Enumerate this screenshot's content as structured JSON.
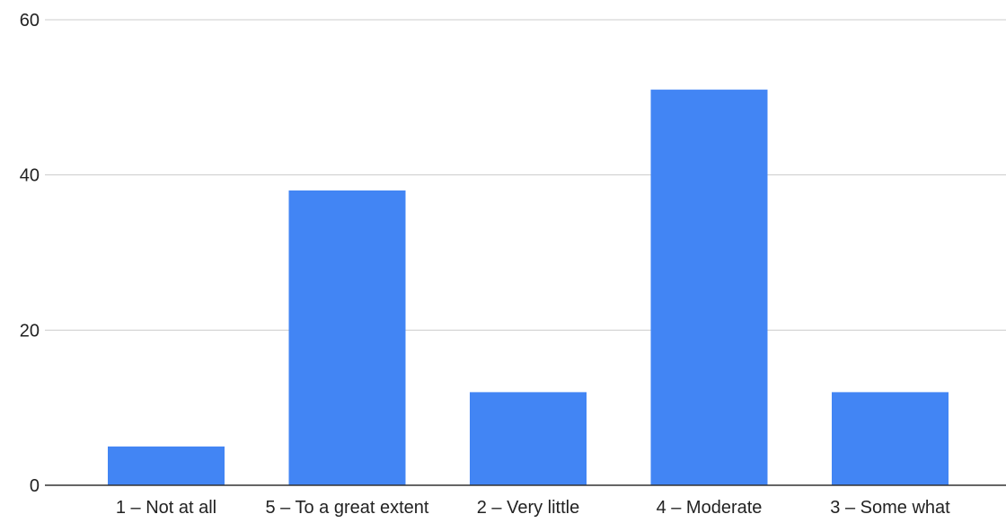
{
  "chart_data": {
    "type": "bar",
    "title": "",
    "xlabel": "",
    "ylabel": "",
    "categories": [
      "1 – Not at all",
      "5 – To a great extent",
      "2 – Very little",
      "4 – Moderate",
      "3 – Some what"
    ],
    "values": [
      5,
      38,
      12,
      51,
      12
    ],
    "ylim": [
      0,
      60
    ],
    "yticks": [
      "0",
      "20",
      "40",
      "60"
    ],
    "grid": true,
    "legend": "none",
    "colors": {
      "bar": "#4285f4",
      "grid": "#cccccc",
      "axis": "#333333"
    }
  }
}
